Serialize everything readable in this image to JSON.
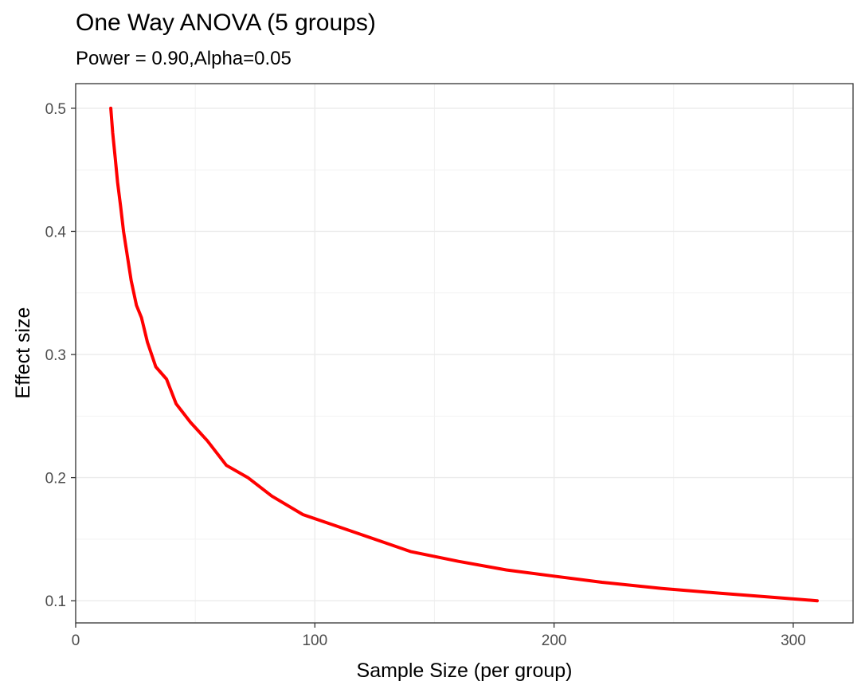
{
  "chart_data": {
    "type": "line",
    "title": "One Way ANOVA (5 groups)",
    "subtitle": "Power = 0.90,Alpha=0.05",
    "xlabel": "Sample Size (per group)",
    "ylabel": "Effect size",
    "xlim": [
      0,
      325
    ],
    "ylim": [
      0.082,
      0.52
    ],
    "x_ticks": [
      0,
      100,
      200,
      300
    ],
    "y_ticks": [
      0.1,
      0.2,
      0.3,
      0.4,
      0.5
    ],
    "grid": true,
    "series": [
      {
        "color": "#ff0000",
        "x": [
          14.7,
          15.5,
          16.5,
          17.5,
          18.8,
          20,
          21.6,
          23.2,
          25.4,
          27.5,
          30,
          33.5,
          38,
          42,
          48,
          55,
          63,
          72,
          82,
          95,
          110,
          125,
          140,
          160,
          180,
          200,
          220,
          245,
          270,
          290,
          310
        ],
        "y": [
          0.5,
          0.48,
          0.46,
          0.44,
          0.42,
          0.4,
          0.38,
          0.36,
          0.34,
          0.33,
          0.31,
          0.29,
          0.28,
          0.26,
          0.245,
          0.23,
          0.21,
          0.2,
          0.185,
          0.17,
          0.16,
          0.15,
          0.14,
          0.132,
          0.125,
          0.12,
          0.115,
          0.11,
          0.106,
          0.103,
          0.1
        ]
      }
    ]
  }
}
